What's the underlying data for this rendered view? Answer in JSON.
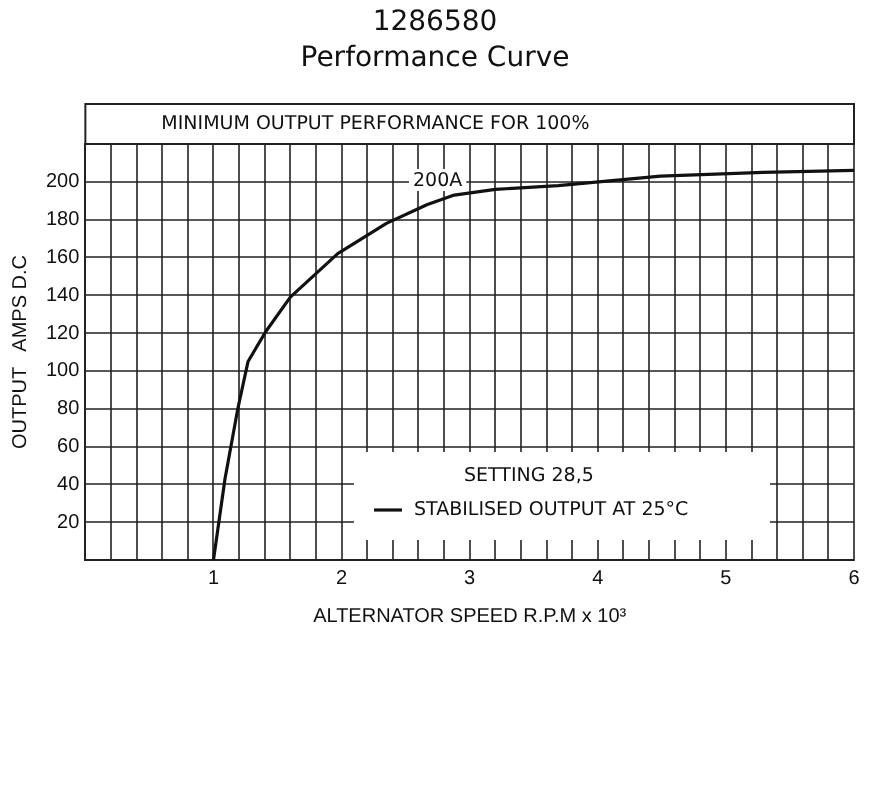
{
  "chart_data": {
    "type": "line",
    "title": "1286580",
    "subtitle": "Performance Curve",
    "xlabel": "ALTERNATOR SPEED R.P.M x 10³",
    "ylabel": "OUTPUT   AMPS D.C",
    "annotations": [
      "MINIMUM OUTPUT PERFORMANCE FOR 100%",
      {
        "text": "200A",
        "x": 2.75,
        "y": 192
      },
      "SETTING 28,5"
    ],
    "x": [
      1,
      1.09,
      1.19,
      1.27,
      1.41,
      1.6,
      1.97,
      2.35,
      2.67,
      2.88,
      3.2,
      3.69,
      4.49,
      5.29,
      6
    ],
    "series": [
      {
        "name": "STABILISED OUTPUT AT 25°C",
        "color": "#111111",
        "values": [
          0,
          43,
          80,
          105,
          121,
          139,
          162,
          178,
          188,
          193,
          196,
          198,
          203,
          205,
          206
        ]
      }
    ],
    "xlim": [
      0,
      6
    ],
    "xticks": [
      {
        "value": 0,
        "label": null
      },
      {
        "value": 0.2,
        "label": null
      },
      {
        "value": 0.4,
        "label": null
      },
      {
        "value": 0.6,
        "label": null
      },
      {
        "value": 0.8,
        "label": null
      },
      1,
      {
        "value": 1.2,
        "label": null
      },
      {
        "value": 1.4,
        "label": null
      },
      {
        "value": 1.6,
        "label": null
      },
      {
        "value": 1.8,
        "label": null
      },
      2,
      {
        "value": 2.2,
        "label": null
      },
      {
        "value": 2.4,
        "label": null
      },
      {
        "value": 2.6,
        "label": null
      },
      {
        "value": 2.8,
        "label": null
      },
      3,
      {
        "value": 3.2,
        "label": null
      },
      {
        "value": 3.4,
        "label": null
      },
      {
        "value": 3.6,
        "label": null
      },
      {
        "value": 3.8,
        "label": null
      },
      4,
      {
        "value": 4.2,
        "label": null
      },
      {
        "value": 4.4,
        "label": null
      },
      {
        "value": 4.6,
        "label": null
      },
      {
        "value": 4.8,
        "label": null
      },
      5,
      {
        "value": 5.2,
        "label": null
      },
      {
        "value": 5.4,
        "label": null
      },
      {
        "value": 5.6,
        "label": null
      },
      {
        "value": 5.8,
        "label": null
      },
      6
    ],
    "ylim": [
      0,
      220
    ],
    "yticks": [
      {
        "value": 0,
        "label": null
      },
      20,
      40,
      60,
      80,
      100,
      120,
      140,
      160,
      180,
      200
    ],
    "grid": true,
    "legend": "bottom right",
    "marker": "none",
    "line_style": "solid"
  }
}
